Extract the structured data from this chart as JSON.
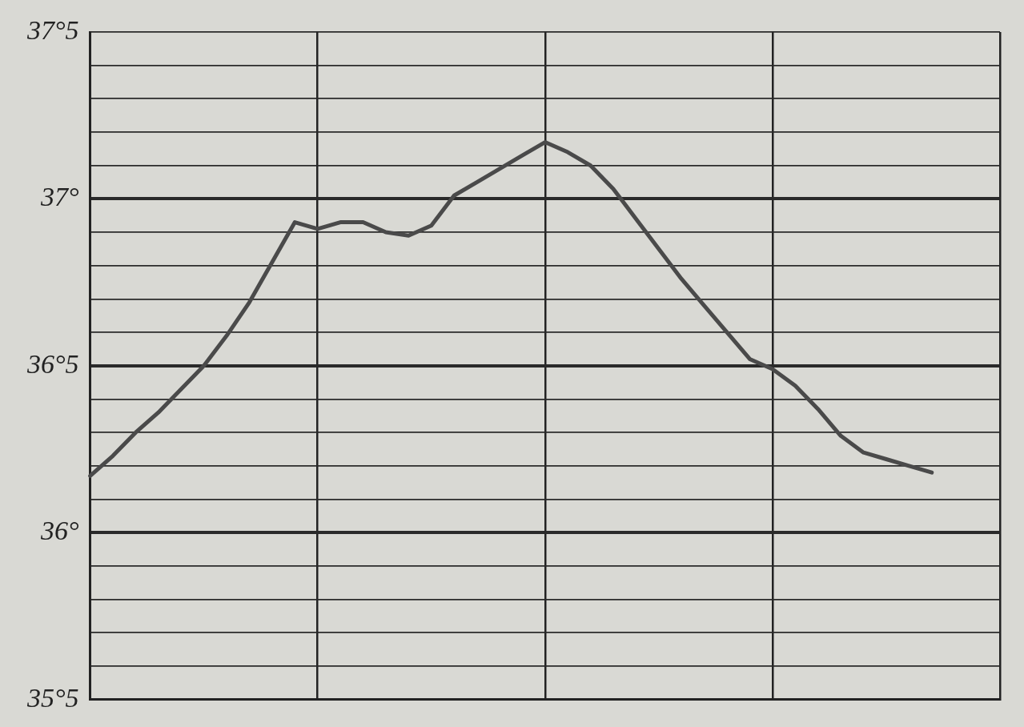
{
  "chart_data": {
    "type": "line",
    "categories": [
      null,
      null,
      null,
      null,
      null,
      null,
      null,
      null,
      null,
      null,
      null,
      null,
      null,
      null,
      null,
      null,
      null,
      null,
      null,
      null,
      null,
      null,
      null,
      null,
      null,
      null,
      null,
      null,
      null,
      null,
      null,
      null,
      null,
      null,
      null,
      null,
      null,
      null,
      null,
      null,
      null
    ],
    "series": [
      {
        "color": "#4a4a4a",
        "values": [
          36.17,
          36.23,
          36.3,
          36.36,
          36.43,
          36.5,
          36.59,
          36.69,
          36.81,
          36.93,
          36.91,
          36.93,
          36.93,
          36.9,
          36.89,
          36.92,
          37.01,
          37.05,
          37.09,
          37.13,
          37.17,
          37.14,
          37.1,
          37.03,
          36.94,
          36.85,
          36.76,
          36.68,
          36.6,
          36.52,
          36.49,
          36.44,
          36.37,
          36.29,
          36.24,
          36.22,
          36.2,
          36.18,
          null,
          null,
          null
        ]
      }
    ],
    "ylim": [
      35.5,
      37.5
    ],
    "yticks": [
      {
        "value": 35.5,
        "label": "35°5"
      },
      {
        "value": 35.6,
        "label": null
      },
      {
        "value": 35.7,
        "label": null
      },
      {
        "value": 35.8,
        "label": null
      },
      {
        "value": 35.9,
        "label": null
      },
      {
        "value": 36,
        "label": "36°"
      },
      {
        "value": 36.1,
        "label": null
      },
      {
        "value": 36.2,
        "label": null
      },
      {
        "value": 36.3,
        "label": null
      },
      {
        "value": 36.4,
        "label": null
      },
      {
        "value": 36.5,
        "label": "36°5"
      },
      {
        "value": 36.6,
        "label": null
      },
      {
        "value": 36.7,
        "label": null
      },
      {
        "value": 36.8,
        "label": null
      },
      {
        "value": 36.9,
        "label": null
      },
      {
        "value": 37,
        "label": "37°"
      },
      {
        "value": 37.1,
        "label": null
      },
      {
        "value": 37.2,
        "label": null
      },
      {
        "value": 37.3,
        "label": null
      },
      {
        "value": 37.4,
        "label": null
      },
      {
        "value": 37.5,
        "label": "37°5"
      }
    ],
    "tick_labels": "y",
    "grid": true,
    "marker": "none",
    "line_style": "solid"
  }
}
